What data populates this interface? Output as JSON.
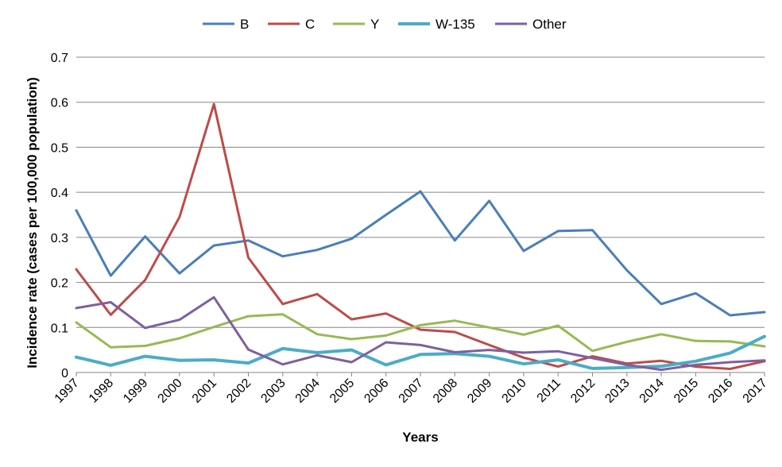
{
  "chart_data": {
    "type": "line",
    "title": "",
    "xlabel": "Years",
    "ylabel": "Incidence rate (cases per 100,000 population)",
    "ylim": [
      0,
      0.7
    ],
    "yticks": [
      "0",
      "0.1",
      "0.2",
      "0.3",
      "0.4",
      "0.5",
      "0.6",
      "0.7"
    ],
    "grid": true,
    "legend_position": "top",
    "categories": [
      "1997",
      "1998",
      "1999",
      "2000",
      "2001",
      "2002",
      "2003",
      "2004",
      "2005",
      "2006",
      "2007",
      "2008",
      "2009",
      "2010",
      "2011",
      "2012",
      "2013",
      "2014",
      "2015",
      "2016",
      "2017"
    ],
    "series": [
      {
        "name": "B",
        "color": "#4a7ebb",
        "width": 3,
        "values": [
          0.36,
          0.215,
          0.302,
          0.22,
          0.282,
          0.293,
          0.258,
          0.272,
          0.297,
          0.35,
          0.402,
          0.293,
          0.381,
          0.27,
          0.314,
          0.316,
          0.227,
          0.152,
          0.176,
          0.127,
          0.134
        ]
      },
      {
        "name": "C",
        "color": "#be4b48",
        "width": 3,
        "values": [
          0.229,
          0.128,
          0.205,
          0.345,
          0.596,
          0.255,
          0.152,
          0.174,
          0.118,
          0.131,
          0.095,
          0.09,
          0.061,
          0.033,
          0.013,
          0.036,
          0.02,
          0.026,
          0.013,
          0.008,
          0.025
        ]
      },
      {
        "name": "Y",
        "color": "#98b954",
        "width": 3,
        "values": [
          0.111,
          0.056,
          0.059,
          0.076,
          0.101,
          0.125,
          0.129,
          0.085,
          0.074,
          0.082,
          0.105,
          0.115,
          0.1,
          0.084,
          0.104,
          0.048,
          0.068,
          0.085,
          0.07,
          0.069,
          0.058
        ]
      },
      {
        "name": "W-135",
        "color": "#4bacc6",
        "width": 4,
        "values": [
          0.034,
          0.016,
          0.036,
          0.027,
          0.028,
          0.021,
          0.053,
          0.044,
          0.05,
          0.017,
          0.04,
          0.042,
          0.036,
          0.019,
          0.028,
          0.009,
          0.011,
          0.014,
          0.025,
          0.043,
          0.08
        ]
      },
      {
        "name": "Other",
        "color": "#7d60a0",
        "width": 3,
        "values": [
          0.143,
          0.156,
          0.099,
          0.117,
          0.167,
          0.051,
          0.018,
          0.038,
          0.023,
          0.067,
          0.061,
          0.045,
          0.05,
          0.044,
          0.047,
          0.032,
          0.017,
          0.006,
          0.017,
          0.023,
          0.027
        ]
      }
    ]
  }
}
